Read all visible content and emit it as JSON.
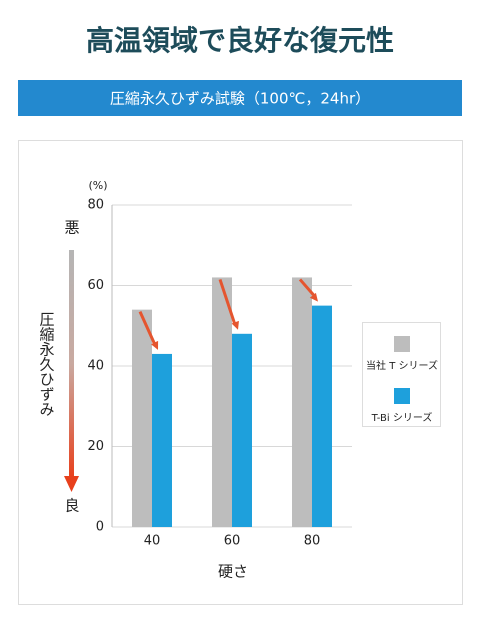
{
  "chart_data": {
    "type": "bar",
    "title": "高温領域で良好な復元性",
    "subtitle": "圧縮永久ひずみ試験（100℃，24hr）",
    "y_unit": "(%)",
    "ylabel": "圧縮永久ひずみ",
    "y_top_label": "悪",
    "y_bottom_label": "良",
    "xlabel": "硬さ",
    "categories": [
      "40",
      "60",
      "80"
    ],
    "series": [
      {
        "name": "当社 T シリーズ",
        "color": "#bdbdbd",
        "values": [
          54,
          62,
          62
        ]
      },
      {
        "name": "T-Bi シリーズ",
        "color": "#1ea0dc",
        "values": [
          43,
          48,
          55
        ]
      }
    ],
    "ylim": [
      0,
      80
    ],
    "yticks": [
      0,
      20,
      40,
      60,
      80
    ],
    "grid": true
  }
}
